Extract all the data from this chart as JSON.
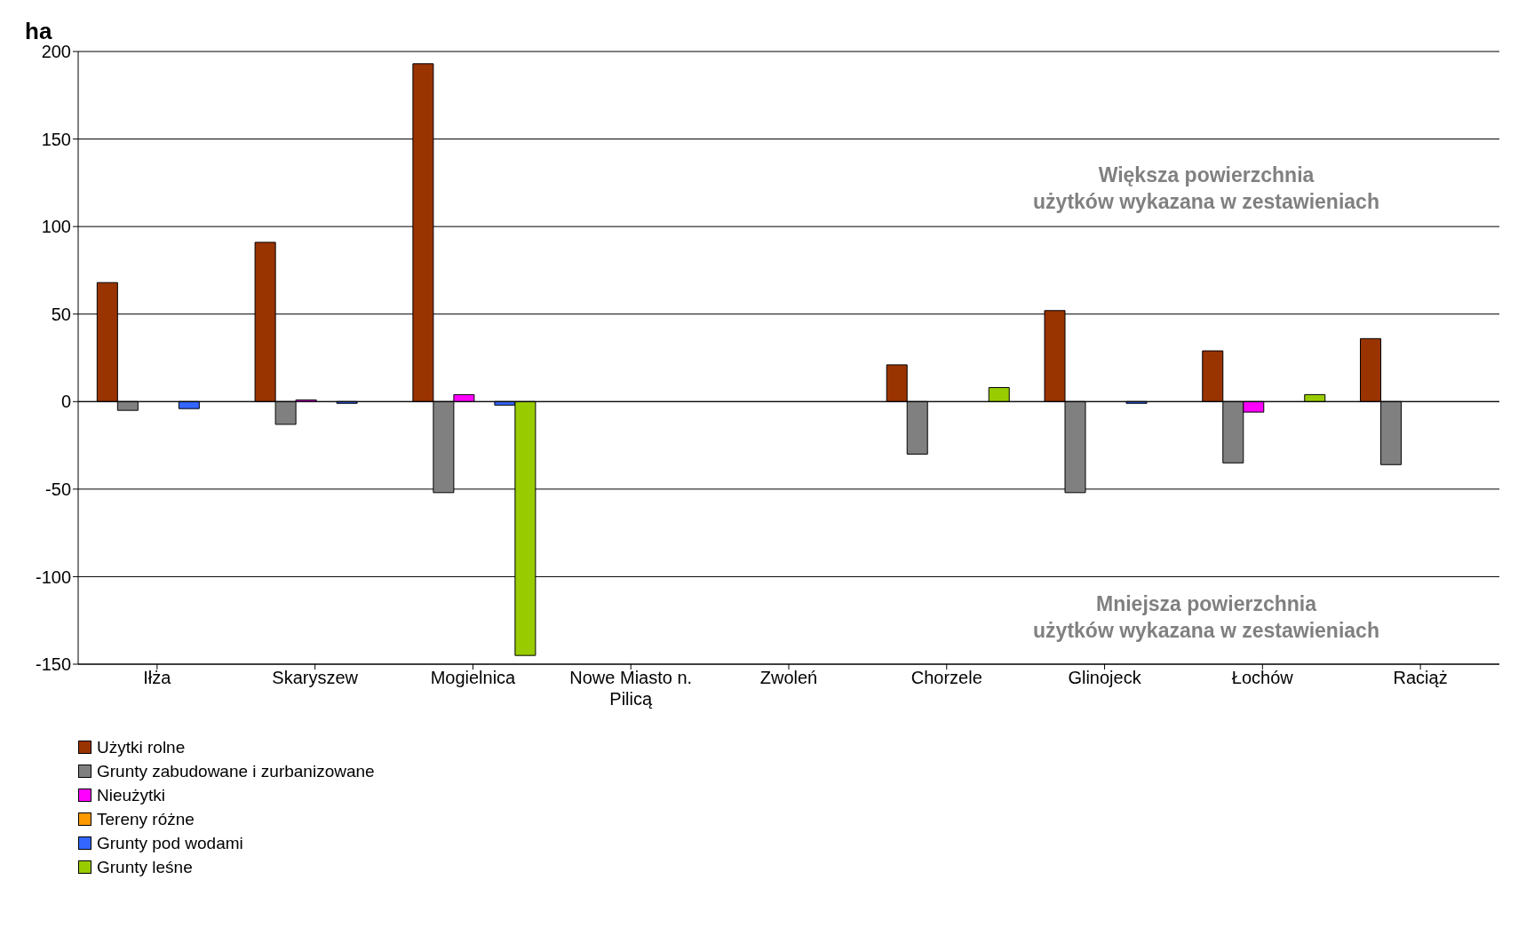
{
  "chart_data": {
    "type": "bar",
    "ylabel": "ha",
    "categories": [
      "Iłża",
      "Skaryszew",
      "Mogielnica",
      "Nowe Miasto n. Pilicą",
      "Zwoleń",
      "Chorzele",
      "Glinojeck",
      "Łochów",
      "Raciąż"
    ],
    "series": [
      {
        "name": "Użytki rolne",
        "color": "#993300",
        "values": [
          68,
          91,
          193,
          0,
          0,
          21,
          52,
          29,
          36
        ]
      },
      {
        "name": "Grunty zabudowane i zurbanizowane",
        "color": "#808080",
        "values": [
          -5,
          -13,
          -52,
          0,
          0,
          -30,
          -52,
          -35,
          -36
        ]
      },
      {
        "name": "Nieużytki",
        "color": "#ff00ff",
        "values": [
          0,
          1,
          4,
          0,
          0,
          0,
          0,
          -6,
          0
        ]
      },
      {
        "name": "Tereny różne",
        "color": "#ff9900",
        "values": [
          0,
          0,
          0,
          0,
          0,
          0,
          0,
          0,
          0
        ]
      },
      {
        "name": "Grunty pod wodami",
        "color": "#3366ff",
        "values": [
          -4,
          -1,
          -2,
          0,
          0,
          0,
          -1,
          0,
          0
        ]
      },
      {
        "name": "Grunty leśne",
        "color": "#99cc00",
        "values": [
          0,
          0,
          -145,
          0,
          0,
          8,
          0,
          4,
          0
        ]
      }
    ],
    "ylim": [
      -150,
      200
    ],
    "yticks": [
      -150,
      -100,
      -50,
      0,
      50,
      100,
      150,
      200
    ],
    "grid": "y",
    "legend": "bottom left",
    "annotations": [
      "Większa powierzchnia\nużytków wykazana w zestawieniach",
      "Mniejsza powierzchnia\nużytków wykazana w zestawieniach"
    ]
  }
}
